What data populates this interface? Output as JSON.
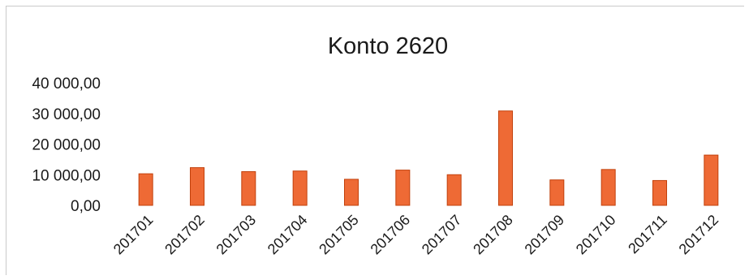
{
  "chart_data": {
    "type": "bar",
    "title": "Konto 2620",
    "xlabel": "",
    "ylabel": "",
    "categories": [
      "201701",
      "201702",
      "201703",
      "201704",
      "201705",
      "201706",
      "201707",
      "201708",
      "201709",
      "201710",
      "201711",
      "201712"
    ],
    "values": [
      10300,
      12300,
      11000,
      11200,
      8500,
      11500,
      10000,
      30800,
      8300,
      11700,
      8100,
      16400
    ],
    "ylim": [
      0,
      40000
    ],
    "yticks": [
      0,
      10000,
      20000,
      30000,
      40000
    ],
    "ytick_labels": [
      "0,00",
      "10 000,00",
      "20 000,00",
      "30 000,00",
      "40 000,00"
    ],
    "grid": false,
    "legend": "none",
    "colors": {
      "bar_fill": "#ee6a35",
      "bar_edge": "#c2410c"
    }
  }
}
